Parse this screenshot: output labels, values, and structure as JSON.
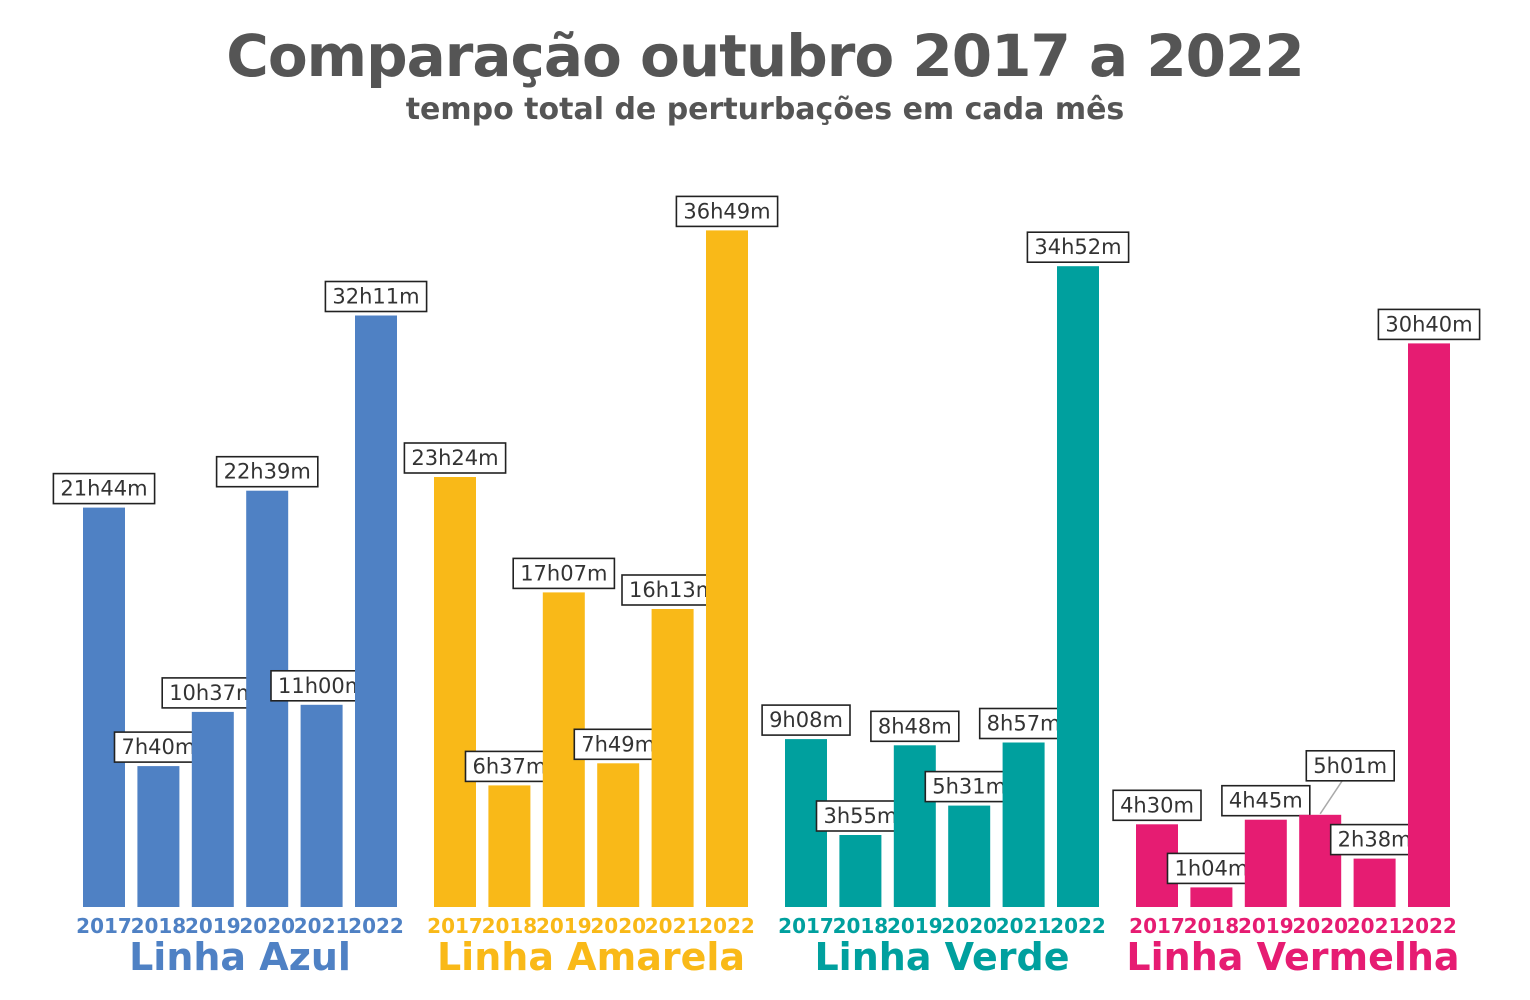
{
  "header": {
    "title": "Comparação outubro 2017 a 2022",
    "subtitle": "tempo total de perturbações em cada mês"
  },
  "chart_data": {
    "type": "bar",
    "title": "Comparação outubro 2017 a 2022",
    "subtitle": "tempo total de perturbações em cada mês",
    "unit": "minutes",
    "categories": [
      "2017",
      "2018",
      "2019",
      "2020",
      "2021",
      "2022"
    ],
    "ylim": [
      0,
      2500
    ],
    "grid": false,
    "legend": "none",
    "groups": [
      {
        "name": "Linha Azul",
        "color": "#4f81c4",
        "values": [
          1304,
          460,
          637,
          1359,
          660,
          1931
        ],
        "labels": [
          "21h44m",
          "7h40m",
          "10h37m",
          "22h39m",
          "11h00m",
          "32h11m"
        ]
      },
      {
        "name": "Linha Amarela",
        "color": "#f9b918",
        "values": [
          1404,
          397,
          1027,
          469,
          973,
          2209
        ],
        "labels": [
          "23h24m",
          "6h37m",
          "17h07m",
          "7h49m",
          "16h13m",
          "36h49m"
        ]
      },
      {
        "name": "Linha Verde",
        "color": "#00a09e",
        "values": [
          548,
          235,
          528,
          331,
          537,
          2092
        ],
        "labels": [
          "9h08m",
          "3h55m",
          "8h48m",
          "5h31m",
          "8h57m",
          "34h52m"
        ]
      },
      {
        "name": "Linha Vermelha",
        "color": "#e61c72",
        "values": [
          270,
          64,
          285,
          301,
          158,
          1840
        ],
        "labels": [
          "4h30m",
          "1h04m",
          "4h45m",
          "5h01m",
          "2h38m",
          "30h40m"
        ]
      }
    ]
  }
}
